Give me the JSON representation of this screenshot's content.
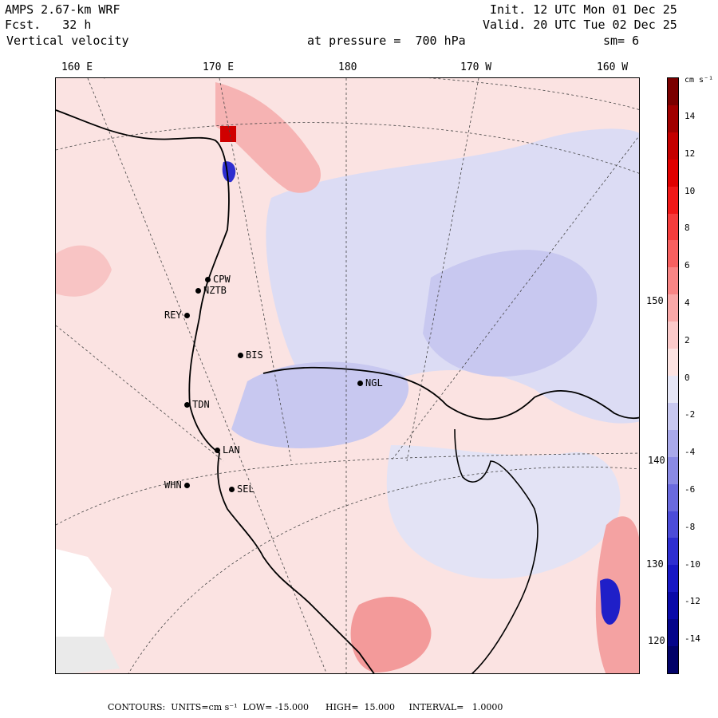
{
  "header": {
    "model": "AMPS 2.67-km WRF",
    "forecast": "Fcst.   32 h",
    "field": "Vertical velocity",
    "pressure": "at pressure =  700 hPa",
    "init": "Init. 12 UTC Mon 01 Dec 25",
    "valid": "Valid. 20 UTC Tue 02 Dec 25",
    "smoothing": "sm= 6"
  },
  "longitude_labels": [
    "160 E",
    "170 E",
    "180",
    "170 W",
    "160 W"
  ],
  "latitude_labels": [
    "150 W",
    "140 W",
    "130 W",
    "120 W"
  ],
  "stations": [
    {
      "id": "CPW"
    },
    {
      "id": "NZTB"
    },
    {
      "id": "REY"
    },
    {
      "id": "BIS"
    },
    {
      "id": "NGL"
    },
    {
      "id": "TDN"
    },
    {
      "id": "LAN"
    },
    {
      "id": "WHN"
    },
    {
      "id": "SEL"
    }
  ],
  "colorbar": {
    "units": "cm s⁻¹",
    "ticks": [
      "14",
      "12",
      "10",
      "8",
      "6",
      "4",
      "2",
      "0",
      "-2",
      "-4",
      "-6",
      "-8",
      "-10",
      "-12",
      "-14"
    ],
    "colors": [
      "#7a0000",
      "#a00000",
      "#c40000",
      "#e00000",
      "#f01818",
      "#f53c3c",
      "#f76060",
      "#f88585",
      "#f9a8a8",
      "#fbcaca",
      "#fce3e2",
      "#e6e6f6",
      "#c8c8f0",
      "#a9a9ea",
      "#8a8ae4",
      "#6a6ade",
      "#4c4cd8",
      "#2e2ed0",
      "#1818c4",
      "#0a0aa8",
      "#05058a",
      "#020268"
    ]
  },
  "footer": "CONTOURS:  UNITS=cm s⁻¹  LOW= -15.000      HIGH=  15.000     INTERVAL=   1.0000"
}
